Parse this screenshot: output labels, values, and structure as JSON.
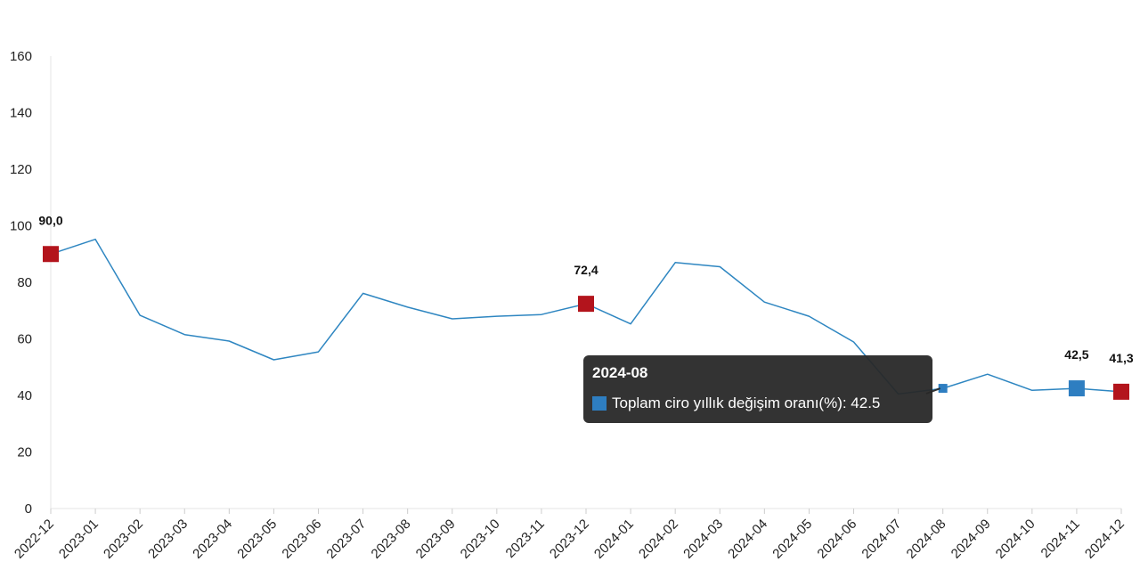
{
  "chart_data": {
    "type": "line",
    "categories": [
      "2022-12",
      "2023-01",
      "2023-02",
      "2023-03",
      "2023-04",
      "2023-05",
      "2023-06",
      "2023-07",
      "2023-08",
      "2023-09",
      "2023-10",
      "2023-11",
      "2023-12",
      "2024-01",
      "2024-02",
      "2024-03",
      "2024-04",
      "2024-05",
      "2024-06",
      "2024-07",
      "2024-08",
      "2024-09",
      "2024-10",
      "2024-11",
      "2024-12"
    ],
    "series": [
      {
        "name": "Toplam ciro yıllık değişim oranı(%)",
        "values": [
          90.0,
          95.2,
          68.3,
          61.5,
          59.2,
          52.6,
          55.4,
          76.1,
          71.2,
          67.1,
          68.0,
          68.6,
          72.4,
          65.3,
          87.0,
          85.5,
          73.0,
          68.0,
          58.9,
          40.5,
          42.5,
          47.5,
          41.8,
          42.5,
          41.3
        ]
      }
    ],
    "yticks": [
      0,
      20,
      40,
      60,
      80,
      100,
      120,
      140,
      160
    ],
    "ylim": [
      0,
      160
    ],
    "highlights": [
      {
        "index": 0,
        "label": "90,0",
        "color": "#b3141c"
      },
      {
        "index": 12,
        "label": "72,4",
        "color": "#b3141c"
      },
      {
        "index": 23,
        "label": "42,5",
        "color": "#2e7ec1"
      },
      {
        "index": 24,
        "label": "41,3",
        "color": "#b3141c"
      }
    ],
    "line_color": "#2e86c1",
    "grid": false
  },
  "tooltip": {
    "title": "2024-08",
    "text": "Toplam ciro yıllık değişim oranı(%): 42.5",
    "swatch_color": "#2e7ec1",
    "index": 20
  }
}
